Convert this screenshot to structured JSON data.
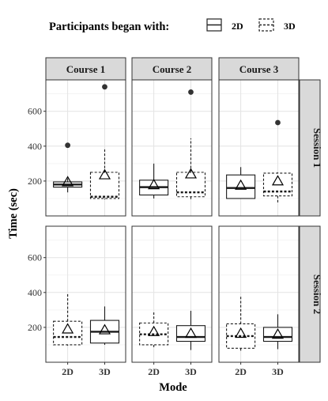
{
  "chart_data": {
    "type": "boxplot",
    "legend": {
      "title": "Participants began with:",
      "placement": "top",
      "entries": [
        {
          "label": "2D",
          "line_style": "solid"
        },
        {
          "label": "3D",
          "line_style": "dashed"
        }
      ]
    },
    "xlabel": "Mode",
    "ylabel": "Time (sec)",
    "x_categories": [
      "2D",
      "3D"
    ],
    "ylim": [
      0,
      780
    ],
    "yticks": [
      200,
      400,
      600
    ],
    "grid": true,
    "columns": [
      "Course 1",
      "Course 2",
      "Course 3"
    ],
    "rows": [
      "Session 1",
      "Session 2"
    ],
    "panels": [
      {
        "row": 0,
        "col": 0,
        "boxes": [
          {
            "x": "2D",
            "began": "2D",
            "q1": 165,
            "median": 180,
            "q3": 195,
            "whisker_low": 135,
            "whisker_high": 215,
            "mean": 195,
            "outliers": [
              405
            ]
          },
          {
            "x": "3D",
            "began": "3D",
            "q1": 100,
            "median": 110,
            "q3": 250,
            "whisker_low": 95,
            "whisker_high": 385,
            "mean": 235,
            "outliers": [
              740
            ]
          }
        ]
      },
      {
        "row": 0,
        "col": 1,
        "boxes": [
          {
            "x": "2D",
            "began": "2D",
            "q1": 120,
            "median": 165,
            "q3": 205,
            "whisker_low": 100,
            "whisker_high": 300,
            "mean": 178,
            "outliers": []
          },
          {
            "x": "3D",
            "began": "3D",
            "q1": 110,
            "median": 135,
            "q3": 250,
            "whisker_low": 95,
            "whisker_high": 445,
            "mean": 240,
            "outliers": [
              710
            ]
          }
        ]
      },
      {
        "row": 0,
        "col": 2,
        "boxes": [
          {
            "x": "2D",
            "began": "2D",
            "q1": 100,
            "median": 160,
            "q3": 235,
            "whisker_low": 100,
            "whisker_high": 280,
            "mean": 175,
            "outliers": []
          },
          {
            "x": "3D",
            "began": "3D",
            "q1": 115,
            "median": 140,
            "q3": 245,
            "whisker_low": 70,
            "whisker_high": 250,
            "mean": 200,
            "outliers": [
              535
            ]
          }
        ]
      },
      {
        "row": 1,
        "col": 0,
        "boxes": [
          {
            "x": "2D",
            "began": "3D",
            "q1": 100,
            "median": 145,
            "q3": 235,
            "whisker_low": 95,
            "whisker_high": 390,
            "mean": 190,
            "outliers": []
          },
          {
            "x": "3D",
            "began": "2D",
            "q1": 110,
            "median": 175,
            "q3": 240,
            "whisker_low": 100,
            "whisker_high": 320,
            "mean": 185,
            "outliers": []
          }
        ]
      },
      {
        "row": 1,
        "col": 1,
        "boxes": [
          {
            "x": "2D",
            "began": "3D",
            "q1": 100,
            "median": 160,
            "q3": 225,
            "whisker_low": 80,
            "whisker_high": 295,
            "mean": 175,
            "outliers": []
          },
          {
            "x": "3D",
            "began": "2D",
            "q1": 120,
            "median": 145,
            "q3": 210,
            "whisker_low": 70,
            "whisker_high": 295,
            "mean": 165,
            "outliers": []
          }
        ]
      },
      {
        "row": 1,
        "col": 2,
        "boxes": [
          {
            "x": "2D",
            "began": "3D",
            "q1": 80,
            "median": 150,
            "q3": 220,
            "whisker_low": 60,
            "whisker_high": 375,
            "mean": 165,
            "outliers": []
          },
          {
            "x": "3D",
            "began": "2D",
            "q1": 120,
            "median": 145,
            "q3": 200,
            "whisker_low": 75,
            "whisker_high": 275,
            "mean": 160,
            "outliers": []
          }
        ]
      }
    ]
  }
}
